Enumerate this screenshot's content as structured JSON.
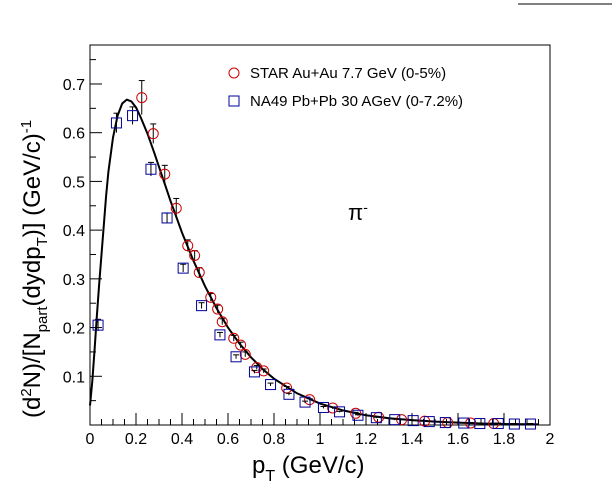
{
  "chart_data": {
    "type": "scatter",
    "xlabel": "p",
    "xlabel_sub": "T",
    "xlabel_unit": " (GeV/c)",
    "ylabel_parts": {
      "p1": "(d",
      "p1_sup": "2",
      "p2": "N)/[N",
      "p2_sub": "part",
      "p3": "(dydp",
      "p3_sub": "T",
      "p4": ")] (GeV/c)",
      "p4_sup": "-1"
    },
    "annotation": {
      "text": "π",
      "sup": "-"
    },
    "xlim": [
      0,
      2
    ],
    "ylim": [
      0,
      0.78
    ],
    "xticks": [
      "0",
      "0.2",
      "0.4",
      "0.6",
      "0.8",
      "1",
      "1.2",
      "1.4",
      "1.6",
      "1.8",
      "2"
    ],
    "xtick_values": [
      0,
      0.2,
      0.4,
      0.6,
      0.8,
      1.0,
      1.2,
      1.4,
      1.6,
      1.8,
      2.0
    ],
    "yticks": [
      "0.1",
      "0.2",
      "0.3",
      "0.4",
      "0.5",
      "0.6",
      "0.7"
    ],
    "ytick_values": [
      0.1,
      0.2,
      0.3,
      0.4,
      0.5,
      0.6,
      0.7
    ],
    "legend_position": "top-right",
    "series": [
      {
        "name": "STAR Au+Au 7.7 GeV (0-5%)",
        "marker": "open-circle",
        "color": "#cc0000",
        "x": [
          0.225,
          0.275,
          0.325,
          0.375,
          0.425,
          0.455,
          0.475,
          0.525,
          0.555,
          0.575,
          0.625,
          0.655,
          0.675,
          0.725,
          0.755,
          0.855,
          0.955,
          1.055,
          1.155,
          1.255,
          1.355,
          1.455,
          1.555,
          1.655,
          1.755
        ],
        "y": [
          0.672,
          0.598,
          0.515,
          0.445,
          0.368,
          0.348,
          0.313,
          0.262,
          0.238,
          0.212,
          0.178,
          0.164,
          0.145,
          0.118,
          0.111,
          0.076,
          0.052,
          0.035,
          0.024,
          0.016,
          0.011,
          0.008,
          0.005,
          0.004,
          0.003
        ],
        "yerr": [
          0.035,
          0.02,
          0.018,
          0.02,
          0.012,
          0.01,
          0.01,
          0.008,
          0.008,
          0.006,
          0.006,
          0.006,
          0.005,
          0.004,
          0.004,
          0.003,
          0.002,
          0.002,
          0.002,
          0.001,
          0.001,
          0.001,
          0.001,
          0.001,
          0.001
        ]
      },
      {
        "name": "NA49 Pb+Pb 30 AGeV (0-7.2%)",
        "marker": "open-square",
        "color": "#000099",
        "x": [
          0.035,
          0.115,
          0.185,
          0.265,
          0.335,
          0.405,
          0.485,
          0.565,
          0.635,
          0.715,
          0.785,
          0.865,
          0.935,
          1.015,
          1.085,
          1.165,
          1.245,
          1.325,
          1.405,
          1.475,
          1.545,
          1.625,
          1.695,
          1.775,
          1.845,
          1.915
        ],
        "y": [
          0.205,
          0.62,
          0.635,
          0.525,
          0.425,
          0.322,
          0.245,
          0.185,
          0.14,
          0.109,
          0.083,
          0.063,
          0.047,
          0.036,
          0.027,
          0.02,
          0.015,
          0.011,
          0.009,
          0.007,
          0.005,
          0.004,
          0.003,
          0.003,
          0.002,
          0.002
        ],
        "yerr": [
          0.012,
          0.02,
          0.018,
          0.014,
          0.01,
          0.008,
          0.006,
          0.005,
          0.004,
          0.003,
          0.003,
          0.002,
          0.002,
          0.002,
          0.001,
          0.001,
          0.001,
          0.001,
          0.001,
          0.001,
          0.001,
          0.001,
          0.001,
          0.001,
          0.001,
          0.001
        ]
      }
    ],
    "curve": {
      "color": "#000000",
      "x": [
        0.0,
        0.01,
        0.02,
        0.03,
        0.04,
        0.05,
        0.06,
        0.07,
        0.08,
        0.1,
        0.12,
        0.14,
        0.16,
        0.18,
        0.2,
        0.22,
        0.25,
        0.28,
        0.3,
        0.35,
        0.4,
        0.45,
        0.5,
        0.55,
        0.6,
        0.65,
        0.7,
        0.75,
        0.8,
        0.9,
        1.0,
        1.1,
        1.2,
        1.3,
        1.4,
        1.5,
        1.6,
        1.7,
        1.8,
        1.9,
        1.95
      ],
      "y": [
        0.04,
        0.09,
        0.155,
        0.225,
        0.29,
        0.35,
        0.41,
        0.47,
        0.52,
        0.59,
        0.635,
        0.66,
        0.668,
        0.664,
        0.652,
        0.632,
        0.598,
        0.558,
        0.53,
        0.46,
        0.395,
        0.337,
        0.285,
        0.24,
        0.2,
        0.167,
        0.139,
        0.115,
        0.095,
        0.065,
        0.044,
        0.03,
        0.02,
        0.014,
        0.01,
        0.007,
        0.005,
        0.003,
        0.002,
        0.0015,
        0.0012
      ]
    }
  }
}
